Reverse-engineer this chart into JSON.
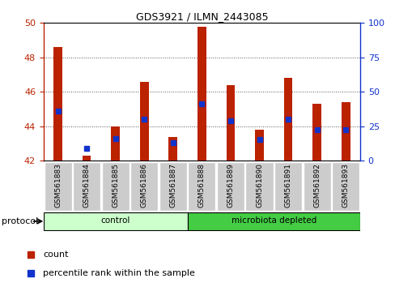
{
  "title": "GDS3921 / ILMN_2443085",
  "samples": [
    "GSM561883",
    "GSM561884",
    "GSM561885",
    "GSM561886",
    "GSM561887",
    "GSM561888",
    "GSM561889",
    "GSM561890",
    "GSM561891",
    "GSM561892",
    "GSM561893"
  ],
  "red_top": [
    48.6,
    42.3,
    44.0,
    46.6,
    43.4,
    49.8,
    46.4,
    43.8,
    46.8,
    45.3,
    45.4
  ],
  "red_bottom": [
    42.0,
    42.0,
    42.0,
    42.0,
    42.0,
    42.0,
    42.0,
    42.0,
    42.0,
    42.0,
    42.0
  ],
  "blue_pos": [
    44.9,
    42.7,
    43.3,
    44.4,
    43.05,
    45.3,
    44.3,
    43.25,
    44.4,
    43.8,
    43.8
  ],
  "groups": [
    {
      "label": "control",
      "start": 0,
      "end": 4,
      "color": "#ccffcc"
    },
    {
      "label": "microbiota depleted",
      "start": 5,
      "end": 10,
      "color": "#44cc44"
    }
  ],
  "ylim_left": [
    42,
    50
  ],
  "ylim_right": [
    0,
    100
  ],
  "yticks_left": [
    42,
    44,
    46,
    48,
    50
  ],
  "yticks_right": [
    0,
    25,
    50,
    75,
    100
  ],
  "red_color": "#bb2200",
  "blue_color": "#1133cc",
  "ticklabel_bg": "#cccccc",
  "protocol_label": "protocol",
  "legend_count": "count",
  "legend_pct": "percentile rank within the sample",
  "grid_color": "#555555",
  "n_samples": 11
}
